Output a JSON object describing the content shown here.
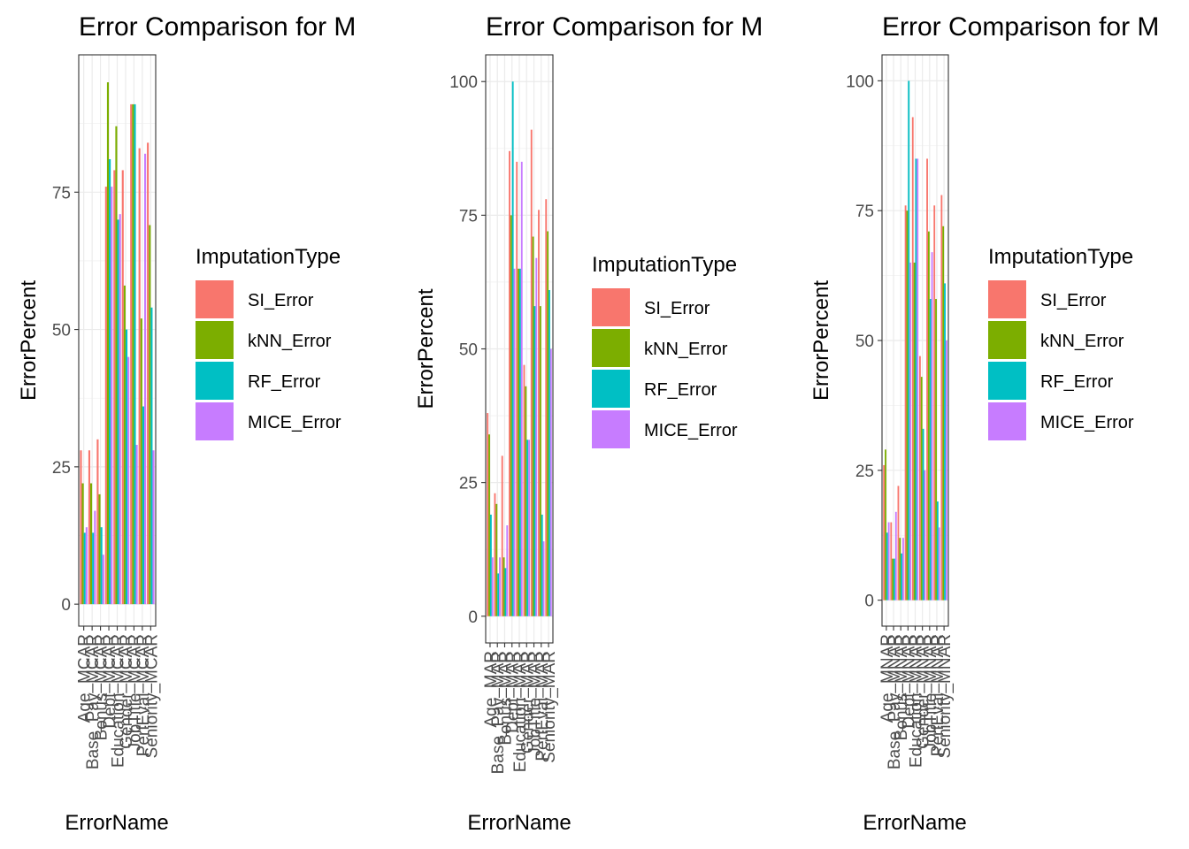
{
  "legend": {
    "title": "ImputationType",
    "entries": [
      "SI_Error",
      "kNN_Error",
      "RF_Error",
      "MICE_Error"
    ],
    "colors": [
      "#F8766D",
      "#7CAE00",
      "#00BFC4",
      "#C77CFF"
    ],
    "placement": "right"
  },
  "chart_data": [
    {
      "type": "bar",
      "title": "Error Comparison for M",
      "xlabel": "ErrorName",
      "ylabel": "ErrorPercent",
      "ylim": [
        -4,
        100
      ],
      "yticks": [
        0,
        25,
        50,
        75
      ],
      "grid": true,
      "categories": [
        "Age_MCAR",
        "Base_Pay_MCAR",
        "Bonus_MCAR",
        "Dept_MCAR",
        "Education_MCAR",
        "Gender_MCAR",
        "JobTitle_MCAR",
        "PerfEval_MCAR",
        "Seniority_MCAR"
      ],
      "series": [
        {
          "name": "SI_Error",
          "values": [
            28,
            28,
            30,
            76,
            79,
            79,
            91,
            83,
            84
          ]
        },
        {
          "name": "kNN_Error",
          "values": [
            22,
            22,
            20,
            95,
            87,
            58,
            91,
            52,
            69
          ]
        },
        {
          "name": "RF_Error",
          "values": [
            13,
            13,
            14,
            81,
            70,
            50,
            91,
            36,
            54
          ]
        },
        {
          "name": "MICE_Error",
          "values": [
            14,
            17,
            9,
            76,
            71,
            45,
            29,
            82,
            28
          ]
        }
      ]
    },
    {
      "type": "bar",
      "title": "Error Comparison for M",
      "xlabel": "ErrorName",
      "ylabel": "ErrorPercent",
      "ylim": [
        -5,
        105
      ],
      "yticks": [
        0,
        25,
        50,
        75,
        100
      ],
      "grid": true,
      "categories": [
        "Age_MAR",
        "Base_Pay_MAR",
        "Bonus_MAR",
        "Dept_MAR",
        "Education_MAR",
        "Gender_MAR",
        "JobTitle_MAR",
        "PerfEval_MAR",
        "Seniority_MAR"
      ],
      "series": [
        {
          "name": "SI_Error",
          "values": [
            38,
            23,
            30,
            87,
            85,
            47,
            91,
            76,
            78
          ]
        },
        {
          "name": "kNN_Error",
          "values": [
            34,
            21,
            11,
            75,
            65,
            43,
            71,
            58,
            72
          ]
        },
        {
          "name": "RF_Error",
          "values": [
            19,
            8,
            9,
            100,
            65,
            33,
            58,
            19,
            61
          ]
        },
        {
          "name": "MICE_Error",
          "values": [
            11,
            11,
            17,
            65,
            85,
            33,
            67,
            14,
            50
          ]
        }
      ]
    },
    {
      "type": "bar",
      "title": "Error Comparison for M",
      "xlabel": "ErrorName",
      "ylabel": "ErrorPercent",
      "ylim": [
        -5,
        105
      ],
      "yticks": [
        0,
        25,
        50,
        75,
        100
      ],
      "grid": true,
      "categories": [
        "Age_MNAR",
        "Base_Pay_MNAR",
        "Bonus_MNAR",
        "Dept_MNAR",
        "Education_MNAR",
        "Gender_MNAR",
        "JobTitle_MNAR",
        "PerfEval_MNAR",
        "Seniority_MNAR"
      ],
      "series": [
        {
          "name": "SI_Error",
          "values": [
            26,
            15,
            22,
            76,
            93,
            47,
            85,
            76,
            78
          ]
        },
        {
          "name": "kNN_Error",
          "values": [
            29,
            8,
            12,
            75,
            65,
            43,
            71,
            58,
            72
          ]
        },
        {
          "name": "RF_Error",
          "values": [
            13,
            8,
            9,
            100,
            85,
            33,
            58,
            19,
            61
          ]
        },
        {
          "name": "MICE_Error",
          "values": [
            15,
            17,
            12,
            65,
            85,
            25,
            67,
            14,
            50
          ]
        }
      ]
    }
  ]
}
